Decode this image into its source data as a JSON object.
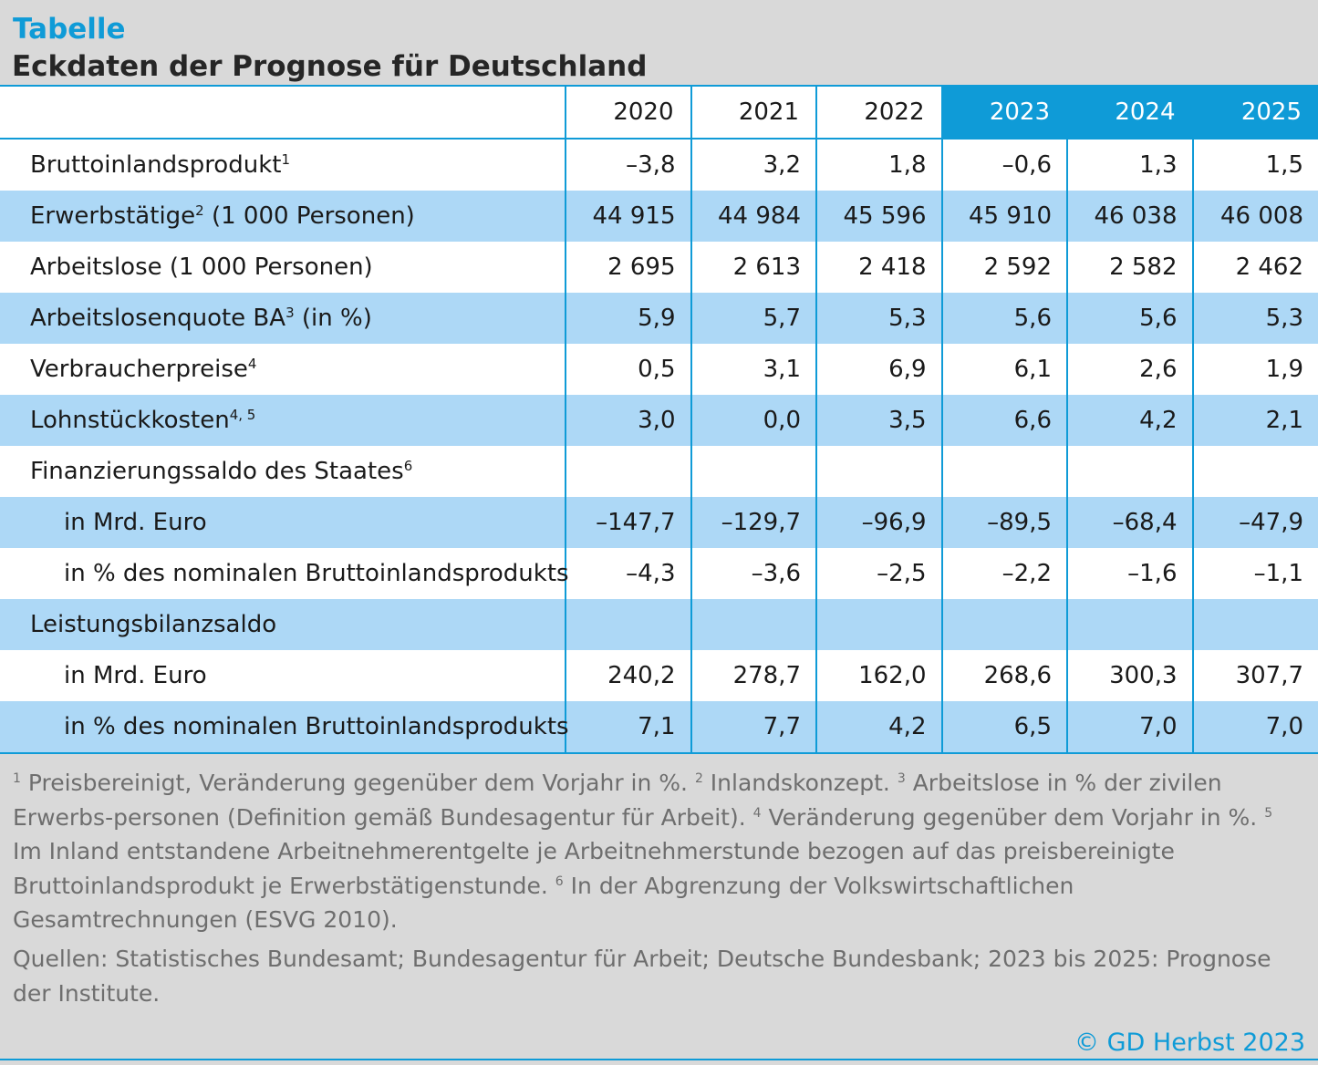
{
  "title": "Tabelle",
  "subtitle": "Eckdaten der Prognose für Deutschland",
  "accent_color": "#0f9bd7",
  "row_highlight_color": "#add8f6",
  "years": [
    "2020",
    "2021",
    "2022",
    "2023",
    "2024",
    "2025"
  ],
  "forecast_years": [
    "2023",
    "2024",
    "2025"
  ],
  "rows": [
    {
      "label": "Bruttoinlandsprodukt",
      "sup": "1",
      "indent": false,
      "values": [
        "–3,8",
        "3,2",
        "1,8",
        "–0,6",
        "1,3",
        "1,5"
      ]
    },
    {
      "label": "Erwerbstätige",
      "sup": "2",
      "label_after": " (1 000 Personen)",
      "indent": false,
      "values": [
        "44 915",
        "44 984",
        "45 596",
        "45 910",
        "46 038",
        "46 008"
      ]
    },
    {
      "label": "Arbeitslose (1 000 Personen)",
      "indent": false,
      "values": [
        "2 695",
        "2 613",
        "2 418",
        "2 592",
        "2 582",
        "2 462"
      ]
    },
    {
      "label": "Arbeitslosenquote BA",
      "sup": "3",
      "label_after": " (in %)",
      "indent": false,
      "values": [
        "5,9",
        "5,7",
        "5,3",
        "5,6",
        "5,6",
        "5,3"
      ]
    },
    {
      "label": "Verbraucherpreise",
      "sup": "4",
      "indent": false,
      "values": [
        "0,5",
        "3,1",
        "6,9",
        "6,1",
        "2,6",
        "1,9"
      ]
    },
    {
      "label": "Lohnstückkosten",
      "sup": "4, 5",
      "indent": false,
      "values": [
        "3,0",
        "0,0",
        "3,5",
        "6,6",
        "4,2",
        "2,1"
      ]
    },
    {
      "label": "Finanzierungssaldo des Staates",
      "sup": "6",
      "indent": false,
      "values": [
        "",
        "",
        "",
        "",
        "",
        ""
      ]
    },
    {
      "label": "in Mrd. Euro",
      "indent": true,
      "values": [
        "–147,7",
        "–129,7",
        "–96,9",
        "–89,5",
        "–68,4",
        "–47,9"
      ]
    },
    {
      "label": "in % des nominalen Bruttoinlandsprodukts",
      "indent": true,
      "values": [
        "–4,3",
        "–3,6",
        "–2,5",
        "–2,2",
        "–1,6",
        "–1,1"
      ]
    },
    {
      "label": "Leistungsbilanzsaldo",
      "indent": false,
      "values": [
        "",
        "",
        "",
        "",
        "",
        ""
      ]
    },
    {
      "label": "in Mrd. Euro",
      "indent": true,
      "values": [
        "240,2",
        "278,7",
        "162,0",
        "268,6",
        "300,3",
        "307,7"
      ]
    },
    {
      "label": "in % des nominalen Bruttoinlandsprodukts",
      "indent": true,
      "values": [
        "7,1",
        "7,7",
        "4,2",
        "6,5",
        "7,0",
        "7,0"
      ]
    }
  ],
  "footnotes": [
    {
      "sup": "1",
      "text": " Preisbereinigt, Veränderung gegenüber dem Vorjahr in %. "
    },
    {
      "sup": "2",
      "text": " Inlandskonzept. "
    },
    {
      "sup": "3",
      "text": " Arbeitslose in % der zivilen Erwerbs-personen (Definition gemäß Bundesagentur für Arbeit). "
    },
    {
      "sup": "4",
      "text": " Veränderung gegenüber dem Vorjahr in %. "
    },
    {
      "sup": "5",
      "text": " Im Inland entstandene Arbeitnehmerentgelte je Arbeitnehmerstunde bezogen auf das preisbereinigte Bruttoinlandsprodukt je Erwerbstätigenstunde. "
    },
    {
      "sup": "6",
      "text": " In der Abgrenzung der Volkswirtschaftlichen Gesamtrechnungen (ESVG 2010)."
    }
  ],
  "sources": "Quellen: Statistisches Bundesamt; Bundesagentur für Arbeit; Deutsche Bundesbank; 2023 bis 2025: Prognose der Institute.",
  "copyright": "© GD Herbst 2023"
}
